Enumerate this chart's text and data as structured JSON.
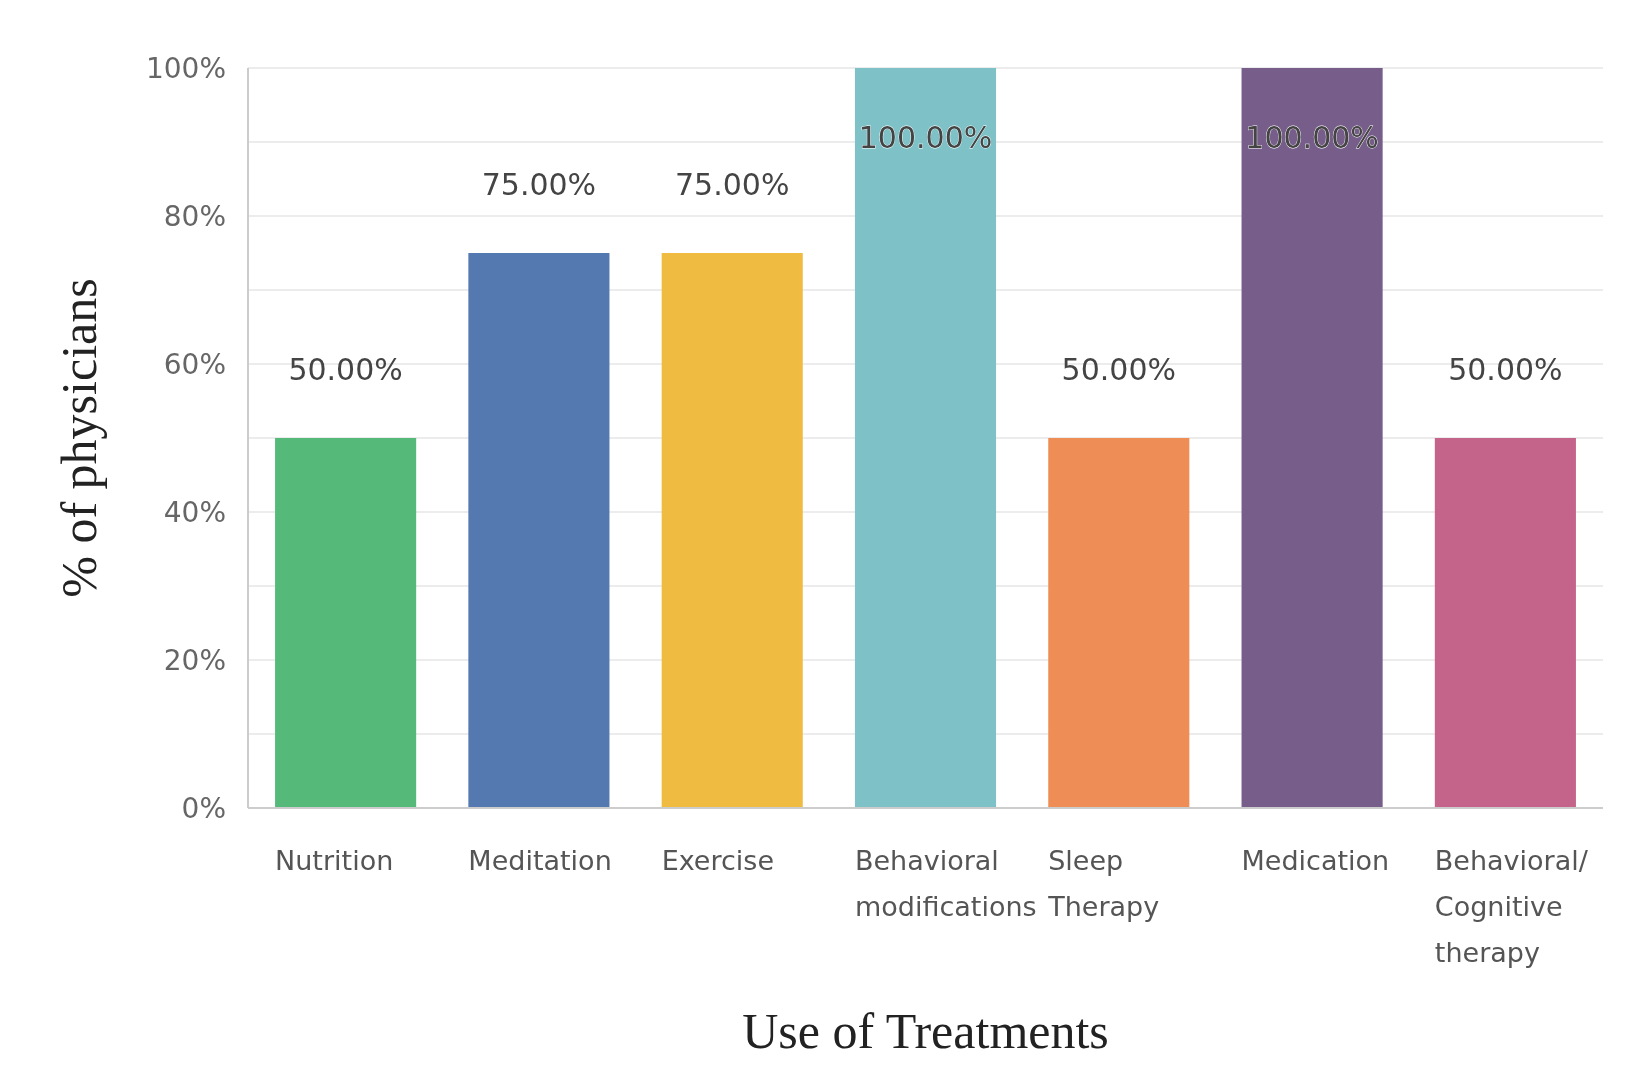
{
  "chart_data": {
    "type": "bar",
    "xlabel": "Use of Treatments",
    "ylabel": "% of physicians",
    "categories": [
      "Nutrition",
      "Meditation",
      "Exercise",
      "Behavioral modifications",
      "Sleep Therapy",
      "Medication",
      "Behavioral/Cognitive therapy"
    ],
    "values": [
      50,
      75,
      75,
      100,
      50,
      100,
      50
    ],
    "colors": [
      "#55b97a",
      "#5479b0",
      "#efbb41",
      "#7ec2c8",
      "#ee8e56",
      "#775d8a",
      "#c5648a"
    ],
    "value_labels": [
      "50.00%",
      "75.00%",
      "75.00%",
      "100.00%",
      "50.00%",
      "100.00%",
      "50.00%"
    ],
    "ylim": [
      0,
      100
    ],
    "yticks": [
      {
        "value": 0,
        "label": "0%"
      },
      {
        "value": 10,
        "label": null
      },
      {
        "value": 20,
        "label": "20%"
      },
      {
        "value": 30,
        "label": null
      },
      {
        "value": 40,
        "label": "40%"
      },
      {
        "value": 50,
        "label": null
      },
      {
        "value": 60,
        "label": "60%"
      },
      {
        "value": 70,
        "label": null
      },
      {
        "value": 80,
        "label": "80%"
      },
      {
        "value": 90,
        "label": null
      },
      {
        "value": 100,
        "label": "100%"
      }
    ],
    "grid": "y"
  }
}
